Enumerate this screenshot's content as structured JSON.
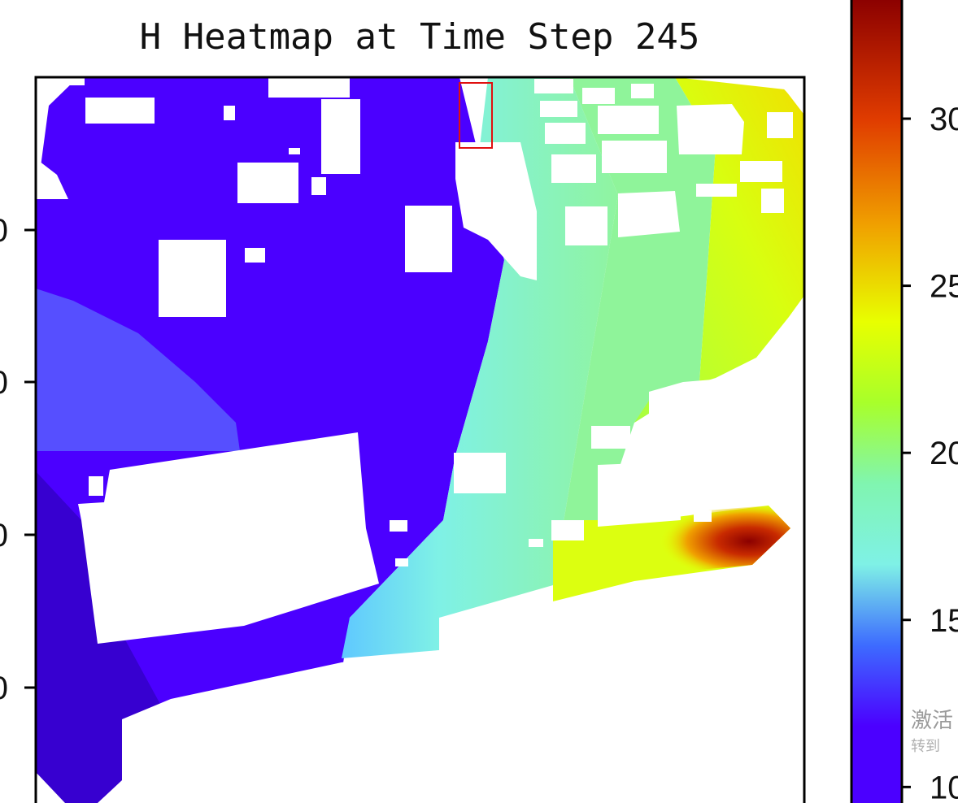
{
  "chart_data": {
    "type": "heatmap",
    "title": "H Heatmap at Time Step 245",
    "xlabel": "",
    "ylabel": "",
    "colormap": "rainbow (indigo-blue-cyan-green-yellow-orange-red-darkred)",
    "colorbar": {
      "ticks": [
        10,
        15,
        20,
        25,
        30
      ],
      "tick_labels": [
        "10",
        "15",
        "20",
        "25",
        "30"
      ],
      "range": [
        9.4,
        33.6
      ],
      "colors": [
        "#4b00ff",
        "#3d6bff",
        "#7ff1e6",
        "#a8ff2a",
        "#e8ff00",
        "#f0a000",
        "#e03c00",
        "#8b0000"
      ]
    },
    "y_ticks_visible": [
      "0",
      "0",
      "0",
      "0"
    ],
    "regions": [
      {
        "name": "left low-value basin",
        "approx_value": 10
      },
      {
        "name": "left-edge shaded wedge",
        "approx_value": 12
      },
      {
        "name": "bottom-left deep pocket",
        "approx_value": 9.5
      },
      {
        "name": "central transition band",
        "approx_value": 15
      },
      {
        "name": "right-central area",
        "approx_value": 18
      },
      {
        "name": "upper-right area",
        "approx_value": 22
      },
      {
        "name": "far-right high area",
        "approx_value": 24
      },
      {
        "name": "lower-right hotspot",
        "approx_value": 32
      }
    ],
    "highlight_box": {
      "label": "selected cell"
    }
  },
  "watermark": {
    "line1": "激活",
    "line2": "转到"
  }
}
